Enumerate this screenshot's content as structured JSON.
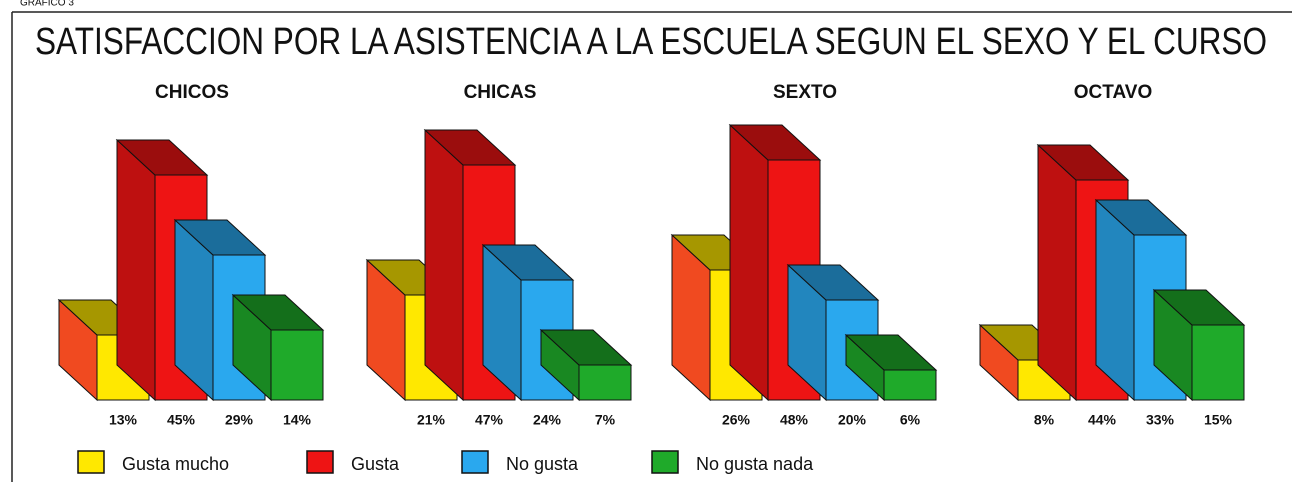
{
  "header": {
    "label": "GRAFICO 3",
    "title": "SATISFACCION POR LA ASISTENCIA A LA ESCUELA SEGUN EL SEXO Y EL CURSO"
  },
  "legend": {
    "items": [
      {
        "name": "Gusta mucho",
        "color": "#ffe800"
      },
      {
        "name": "Gusta",
        "color": "#ee1414"
      },
      {
        "name": "No gusta",
        "color": "#2aa8ee"
      },
      {
        "name": "No gusta nada",
        "color": "#1faa2a"
      }
    ]
  },
  "chart_data": [
    {
      "type": "bar",
      "title": "CHICOS",
      "values": [
        13,
        45,
        29,
        14
      ],
      "value_labels": [
        "13%",
        "45%",
        "29%",
        "14%"
      ]
    },
    {
      "type": "bar",
      "title": "CHICAS",
      "values": [
        21,
        47,
        24,
        7
      ],
      "value_labels": [
        "21%",
        "47%",
        "24%",
        "7%"
      ]
    },
    {
      "type": "bar",
      "title": "SEXTO",
      "values": [
        26,
        48,
        20,
        6
      ],
      "value_labels": [
        "26%",
        "48%",
        "20%",
        "6%"
      ]
    },
    {
      "type": "bar",
      "title": "OCTAVO",
      "values": [
        8,
        44,
        33,
        15
      ],
      "value_labels": [
        "8%",
        "44%",
        "33%",
        "15%"
      ]
    }
  ]
}
